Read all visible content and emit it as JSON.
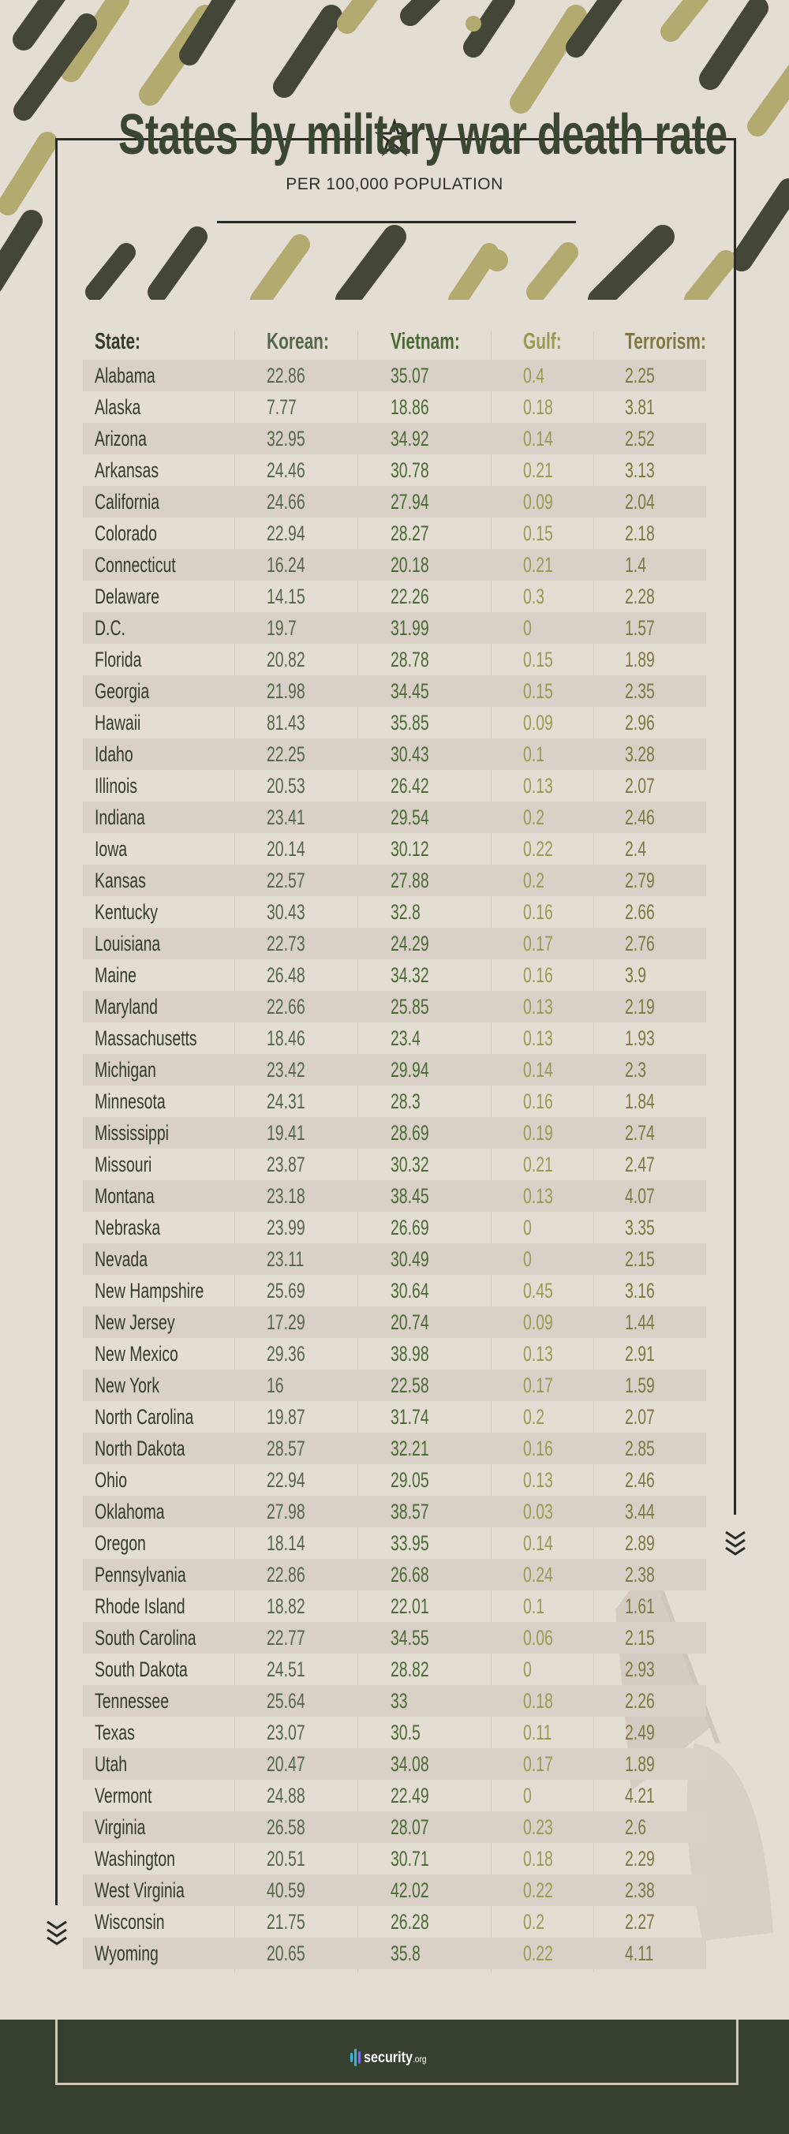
{
  "header": {
    "title": "States by military war death rate",
    "subtitle": "PER 100,000 POPULATION"
  },
  "colors": {
    "background": "#e4ddd3",
    "title": "#3b4632",
    "camo_dark": "#444638",
    "camo_light": "#b2aa6e",
    "footer": "#36402f",
    "korean": "#56664a",
    "vietnam": "#4a6a35",
    "gulf": "#999a52",
    "terrorism": "#7e7941"
  },
  "chart_data": {
    "type": "table",
    "columns": [
      "State:",
      "Korean:",
      "Vietnam:",
      "Gulf:",
      "Terrorism:"
    ],
    "rows": [
      [
        "Alabama",
        "22.86",
        "35.07",
        "0.4",
        "2.25"
      ],
      [
        "Alaska",
        "7.77",
        "18.86",
        "0.18",
        "3.81"
      ],
      [
        "Arizona",
        "32.95",
        "34.92",
        "0.14",
        "2.52"
      ],
      [
        "Arkansas",
        "24.46",
        "30.78",
        "0.21",
        "3.13"
      ],
      [
        "California",
        "24.66",
        "27.94",
        "0.09",
        "2.04"
      ],
      [
        "Colorado",
        "22.94",
        "28.27",
        "0.15",
        "2.18"
      ],
      [
        "Connecticut",
        "16.24",
        "20.18",
        "0.21",
        "1.4"
      ],
      [
        "Delaware",
        "14.15",
        "22.26",
        "0.3",
        "2.28"
      ],
      [
        "D.C.",
        "19.7",
        "31.99",
        "0",
        "1.57"
      ],
      [
        "Florida",
        "20.82",
        "28.78",
        "0.15",
        "1.89"
      ],
      [
        "Georgia",
        "21.98",
        "34.45",
        "0.15",
        "2.35"
      ],
      [
        "Hawaii",
        "81.43",
        "35.85",
        "0.09",
        "2.96"
      ],
      [
        "Idaho",
        "22.25",
        "30.43",
        "0.1",
        "3.28"
      ],
      [
        "Illinois",
        "20.53",
        "26.42",
        "0.13",
        "2.07"
      ],
      [
        "Indiana",
        "23.41",
        "29.54",
        "0.2",
        "2.46"
      ],
      [
        "Iowa",
        "20.14",
        "30.12",
        "0.22",
        "2.4"
      ],
      [
        "Kansas",
        "22.57",
        "27.88",
        "0.2",
        "2.79"
      ],
      [
        "Kentucky",
        "30.43",
        "32.8",
        "0.16",
        "2.66"
      ],
      [
        "Louisiana",
        "22.73",
        "24.29",
        "0.17",
        "2.76"
      ],
      [
        "Maine",
        "26.48",
        "34.32",
        "0.16",
        "3.9"
      ],
      [
        "Maryland",
        "22.66",
        "25.85",
        "0.13",
        "2.19"
      ],
      [
        "Massachusetts",
        "18.46",
        "23.4",
        "0.13",
        "1.93"
      ],
      [
        "Michigan",
        "23.42",
        "29.94",
        "0.14",
        "2.3"
      ],
      [
        "Minnesota",
        "24.31",
        "28.3",
        "0.16",
        "1.84"
      ],
      [
        "Mississippi",
        "19.41",
        "28.69",
        "0.19",
        "2.74"
      ],
      [
        "Missouri",
        "23.87",
        "30.32",
        "0.21",
        "2.47"
      ],
      [
        "Montana",
        "23.18",
        "38.45",
        "0.13",
        "4.07"
      ],
      [
        "Nebraska",
        "23.99",
        "26.69",
        "0",
        "3.35"
      ],
      [
        "Nevada",
        "23.11",
        "30.49",
        "0",
        "2.15"
      ],
      [
        "New Hampshire",
        "25.69",
        "30.64",
        "0.45",
        "3.16"
      ],
      [
        "New Jersey",
        "17.29",
        "20.74",
        "0.09",
        "1.44"
      ],
      [
        "New Mexico",
        "29.36",
        "38.98",
        "0.13",
        "2.91"
      ],
      [
        "New York",
        "16",
        "22.58",
        "0.17",
        "1.59"
      ],
      [
        "North Carolina",
        "19.87",
        "31.74",
        "0.2",
        "2.07"
      ],
      [
        "North Dakota",
        "28.57",
        "32.21",
        "0.16",
        "2.85"
      ],
      [
        "Ohio",
        "22.94",
        "29.05",
        "0.13",
        "2.46"
      ],
      [
        "Oklahoma",
        "27.98",
        "38.57",
        "0.03",
        "3.44"
      ],
      [
        "Oregon",
        "18.14",
        "33.95",
        "0.14",
        "2.89"
      ],
      [
        "Pennsylvania",
        "22.86",
        "26.68",
        "0.24",
        "2.38"
      ],
      [
        "Rhode Island",
        "18.82",
        "22.01",
        "0.1",
        "1.61"
      ],
      [
        "South Carolina",
        "22.77",
        "34.55",
        "0.06",
        "2.15"
      ],
      [
        "South Dakota",
        "24.51",
        "28.82",
        "0",
        "2.93"
      ],
      [
        "Tennessee",
        "25.64",
        "33",
        "0.18",
        "2.26"
      ],
      [
        "Texas",
        "23.07",
        "30.5",
        "0.11",
        "2.49"
      ],
      [
        "Utah",
        "20.47",
        "34.08",
        "0.17",
        "1.89"
      ],
      [
        "Vermont",
        "24.88",
        "22.49",
        "0",
        "4.21"
      ],
      [
        "Virginia",
        "26.58",
        "28.07",
        "0.23",
        "2.6"
      ],
      [
        "Washington",
        "20.51",
        "30.71",
        "0.18",
        "2.29"
      ],
      [
        "West Virginia",
        "40.59",
        "42.02",
        "0.22",
        "2.38"
      ],
      [
        "Wisconsin",
        "21.75",
        "26.28",
        "0.2",
        "2.27"
      ],
      [
        "Wyoming",
        "20.65",
        "35.8",
        "0.22",
        "4.11"
      ]
    ]
  },
  "footer": {
    "logo": "security.org"
  }
}
